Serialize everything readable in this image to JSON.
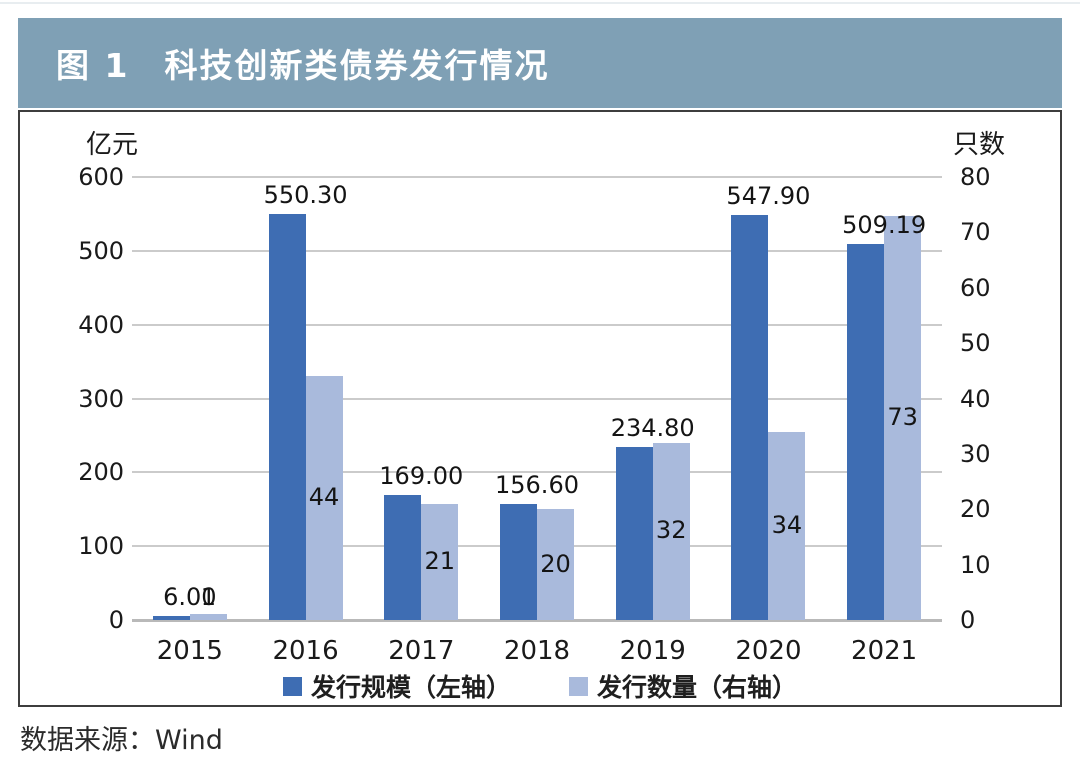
{
  "title": "图 1　科技创新类债券发行情况",
  "source": "数据来源：Wind",
  "colors": {
    "title_bar": "#7FA0B5",
    "bar_primary": "#3E6DB3",
    "bar_secondary": "#A9BADC",
    "gridline": "#CBCBCB",
    "axis_line": "#B9B9B9"
  },
  "chart_data": {
    "type": "bar",
    "title": "图 1　科技创新类债券发行情况",
    "categories": [
      "2015",
      "2016",
      "2017",
      "2018",
      "2019",
      "2020",
      "2021"
    ],
    "series": [
      {
        "name": "发行规模（左轴）",
        "axis": "left",
        "color": "#3E6DB3",
        "values": [
          6.0,
          550.3,
          169.0,
          156.6,
          234.8,
          547.9,
          509.19
        ],
        "labels": [
          "6.00",
          "550.30",
          "169.00",
          "156.60",
          "234.80",
          "547.90",
          "509.19"
        ]
      },
      {
        "name": "发行数量（右轴）",
        "axis": "right",
        "color": "#A9BADC",
        "values": [
          1,
          44,
          21,
          20,
          32,
          34,
          73
        ],
        "labels": [
          "1",
          "44",
          "21",
          "20",
          "32",
          "34",
          "73"
        ]
      }
    ],
    "left_axis": {
      "label": "亿元",
      "min": 0,
      "max": 600,
      "step": 100,
      "ticks": [
        "600",
        "500",
        "400",
        "300",
        "200",
        "100",
        "0"
      ]
    },
    "right_axis": {
      "label": "只数",
      "min": 0,
      "max": 80,
      "step": 10,
      "ticks": [
        "80",
        "70",
        "60",
        "50",
        "40",
        "30",
        "20",
        "10",
        "0"
      ]
    },
    "grid": "horizontal",
    "legend_position": "bottom"
  }
}
